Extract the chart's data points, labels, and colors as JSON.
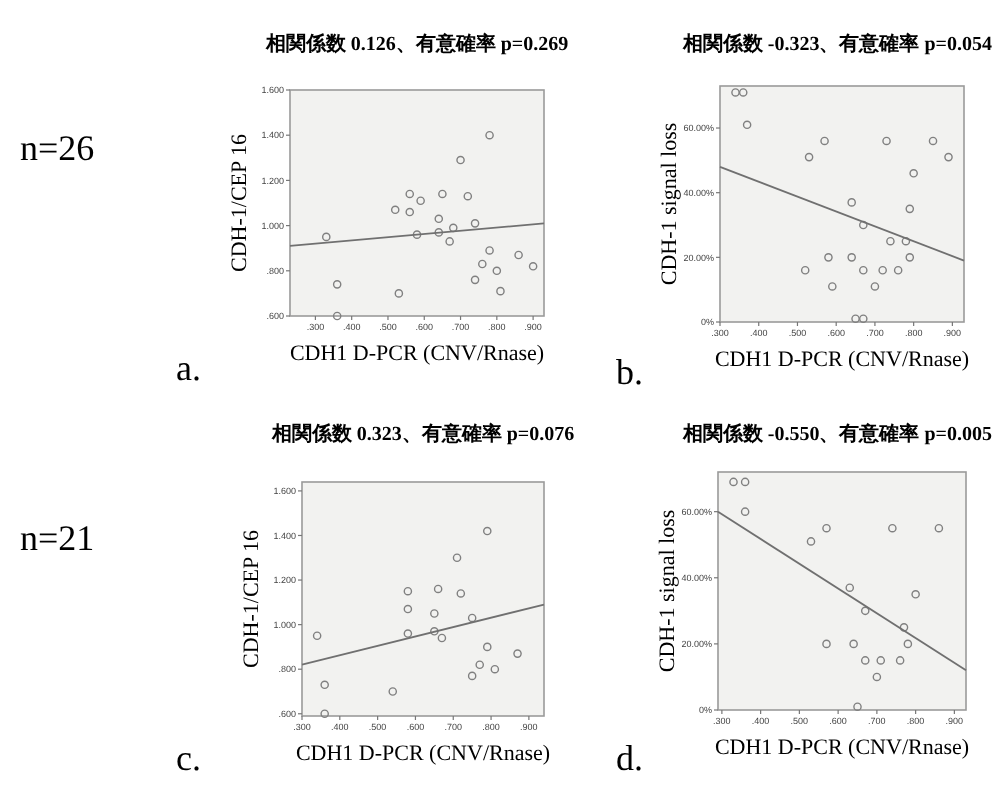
{
  "chart_data": [
    {
      "type": "scatter",
      "title": "相関係数 0.126、有意確率 p=0.269",
      "xlabel": "CDH1 D-PCR (CNV/Rnase)",
      "ylabel": "CDH-1/CEP 16",
      "annotations": [
        "n=26",
        "a."
      ],
      "xlim": [
        0.23,
        0.93
      ],
      "ylim": [
        0.6,
        1.6
      ],
      "xticks": [
        {
          "value": 0.3,
          "label": ".300"
        },
        {
          "value": 0.4,
          "label": ".400"
        },
        {
          "value": 0.5,
          "label": ".500"
        },
        {
          "value": 0.6,
          "label": ".600"
        },
        {
          "value": 0.7,
          "label": ".700"
        },
        {
          "value": 0.8,
          "label": ".800"
        },
        {
          "value": 0.9,
          "label": ".900"
        }
      ],
      "yticks": [
        {
          "value": 0.6,
          "label": ".600"
        },
        {
          "value": 0.8,
          "label": ".800"
        },
        {
          "value": 1.0,
          "label": "1.000"
        },
        {
          "value": 1.2,
          "label": "1.200"
        },
        {
          "value": 1.4,
          "label": "1.400"
        },
        {
          "value": 1.6,
          "label": "1.600"
        }
      ],
      "series": [
        {
          "marker": "circle",
          "color": "#808080",
          "x": [
            0.33,
            0.36,
            0.53,
            0.52,
            0.56,
            0.56,
            0.59,
            0.64,
            0.58,
            0.64,
            0.65,
            0.68,
            0.67,
            0.7,
            0.72,
            0.74,
            0.78,
            0.78,
            0.76,
            0.74,
            0.8,
            0.81,
            0.86,
            0.36,
            0.9
          ],
          "values": [
            0.95,
            0.74,
            0.7,
            1.07,
            1.14,
            1.06,
            1.11,
            1.03,
            0.96,
            0.97,
            1.14,
            0.99,
            0.93,
            1.29,
            1.13,
            1.01,
            1.4,
            0.89,
            0.83,
            0.76,
            0.8,
            0.71,
            0.87,
            0.6,
            0.82
          ]
        },
        {
          "type": "line",
          "color": "#707070",
          "x": [
            0.23,
            0.93
          ],
          "values": [
            0.91,
            1.01
          ]
        }
      ]
    },
    {
      "type": "scatter",
      "title": "相関係数 -0.323、有意確率 p=0.054",
      "xlabel": "CDH1 D-PCR (CNV/Rnase)",
      "ylabel": "CDH-1 signal loss",
      "annotations": [
        "b."
      ],
      "xlim": [
        0.3,
        0.93
      ],
      "ylim": [
        0,
        73
      ],
      "xticks": [
        {
          "value": 0.3,
          "label": ".300"
        },
        {
          "value": 0.4,
          "label": ".400"
        },
        {
          "value": 0.5,
          "label": ".500"
        },
        {
          "value": 0.6,
          "label": ".600"
        },
        {
          "value": 0.7,
          "label": ".700"
        },
        {
          "value": 0.8,
          "label": ".800"
        },
        {
          "value": 0.9,
          "label": ".900"
        }
      ],
      "yticks": [
        {
          "value": 0,
          "label": "0%"
        },
        {
          "value": 20,
          "label": "20.00%"
        },
        {
          "value": 40,
          "label": "40.00%"
        },
        {
          "value": 60,
          "label": "60.00%"
        }
      ],
      "series": [
        {
          "marker": "circle",
          "color": "#808080",
          "x": [
            0.34,
            0.36,
            0.37,
            0.53,
            0.57,
            0.73,
            0.85,
            0.89,
            0.8,
            0.64,
            0.79,
            0.67,
            0.74,
            0.78,
            0.58,
            0.64,
            0.79,
            0.52,
            0.67,
            0.72,
            0.76,
            0.59,
            0.7,
            0.65,
            0.67
          ],
          "values": [
            71,
            71,
            61,
            51,
            56,
            56,
            56,
            51,
            46,
            37,
            35,
            30,
            25,
            25,
            20,
            20,
            20,
            16,
            16,
            16,
            16,
            11,
            11,
            1,
            1
          ]
        },
        {
          "type": "line",
          "color": "#707070",
          "x": [
            0.3,
            0.93
          ],
          "values": [
            48,
            19
          ]
        }
      ]
    },
    {
      "type": "scatter",
      "title": "相関係数 0.323、有意確率 p=0.076",
      "xlabel": "CDH1 D-PCR (CNV/Rnase)",
      "ylabel": "CDH-1/CEP 16",
      "annotations": [
        "n=21",
        "c."
      ],
      "xlim": [
        0.3,
        0.94
      ],
      "ylim": [
        0.59,
        1.64
      ],
      "xticks": [
        {
          "value": 0.3,
          "label": ".300"
        },
        {
          "value": 0.4,
          "label": ".400"
        },
        {
          "value": 0.5,
          "label": ".500"
        },
        {
          "value": 0.6,
          "label": ".600"
        },
        {
          "value": 0.7,
          "label": ".700"
        },
        {
          "value": 0.8,
          "label": ".800"
        },
        {
          "value": 0.9,
          "label": ".900"
        }
      ],
      "yticks": [
        {
          "value": 0.6,
          "label": ".600"
        },
        {
          "value": 0.8,
          "label": ".800"
        },
        {
          "value": 1.0,
          "label": "1.000"
        },
        {
          "value": 1.2,
          "label": "1.200"
        },
        {
          "value": 1.4,
          "label": "1.400"
        },
        {
          "value": 1.6,
          "label": "1.600"
        }
      ],
      "series": [
        {
          "marker": "circle",
          "color": "#808080",
          "x": [
            0.34,
            0.36,
            0.54,
            0.58,
            0.58,
            0.58,
            0.65,
            0.66,
            0.65,
            0.67,
            0.71,
            0.72,
            0.75,
            0.79,
            0.79,
            0.77,
            0.75,
            0.81,
            0.87,
            0.36
          ],
          "values": [
            0.95,
            0.73,
            0.7,
            1.15,
            1.07,
            0.96,
            1.05,
            1.16,
            0.97,
            0.94,
            1.3,
            1.14,
            1.03,
            1.42,
            0.9,
            0.82,
            0.77,
            0.8,
            0.87,
            0.6
          ]
        },
        {
          "type": "line",
          "color": "#707070",
          "x": [
            0.3,
            0.94
          ],
          "values": [
            0.82,
            1.09
          ]
        }
      ]
    },
    {
      "type": "scatter",
      "title": "相関係数 -0.550、有意確率 p=0.005",
      "xlabel": "CDH1 D-PCR (CNV/Rnase)",
      "ylabel": "CDH-1 signal loss",
      "annotations": [
        "d."
      ],
      "xlim": [
        0.29,
        0.93
      ],
      "ylim": [
        0,
        72
      ],
      "xticks": [
        {
          "value": 0.3,
          "label": ".300"
        },
        {
          "value": 0.4,
          "label": ".400"
        },
        {
          "value": 0.5,
          "label": ".500"
        },
        {
          "value": 0.6,
          "label": ".600"
        },
        {
          "value": 0.7,
          "label": ".700"
        },
        {
          "value": 0.8,
          "label": ".800"
        },
        {
          "value": 0.9,
          "label": ".900"
        }
      ],
      "yticks": [
        {
          "value": 0,
          "label": "0%"
        },
        {
          "value": 20,
          "label": "20.00%"
        },
        {
          "value": 40,
          "label": "40.00%"
        },
        {
          "value": 60,
          "label": "60.00%"
        }
      ],
      "series": [
        {
          "marker": "circle",
          "color": "#808080",
          "x": [
            0.33,
            0.36,
            0.36,
            0.53,
            0.57,
            0.74,
            0.86,
            0.8,
            0.63,
            0.67,
            0.77,
            0.57,
            0.64,
            0.78,
            0.67,
            0.71,
            0.76,
            0.7,
            0.65
          ],
          "values": [
            69,
            69,
            60,
            51,
            55,
            55,
            55,
            35,
            37,
            30,
            25,
            20,
            20,
            20,
            15,
            15,
            15,
            10,
            1
          ]
        },
        {
          "type": "line",
          "color": "#707070",
          "x": [
            0.29,
            0.93
          ],
          "values": [
            60,
            12
          ]
        }
      ]
    }
  ]
}
